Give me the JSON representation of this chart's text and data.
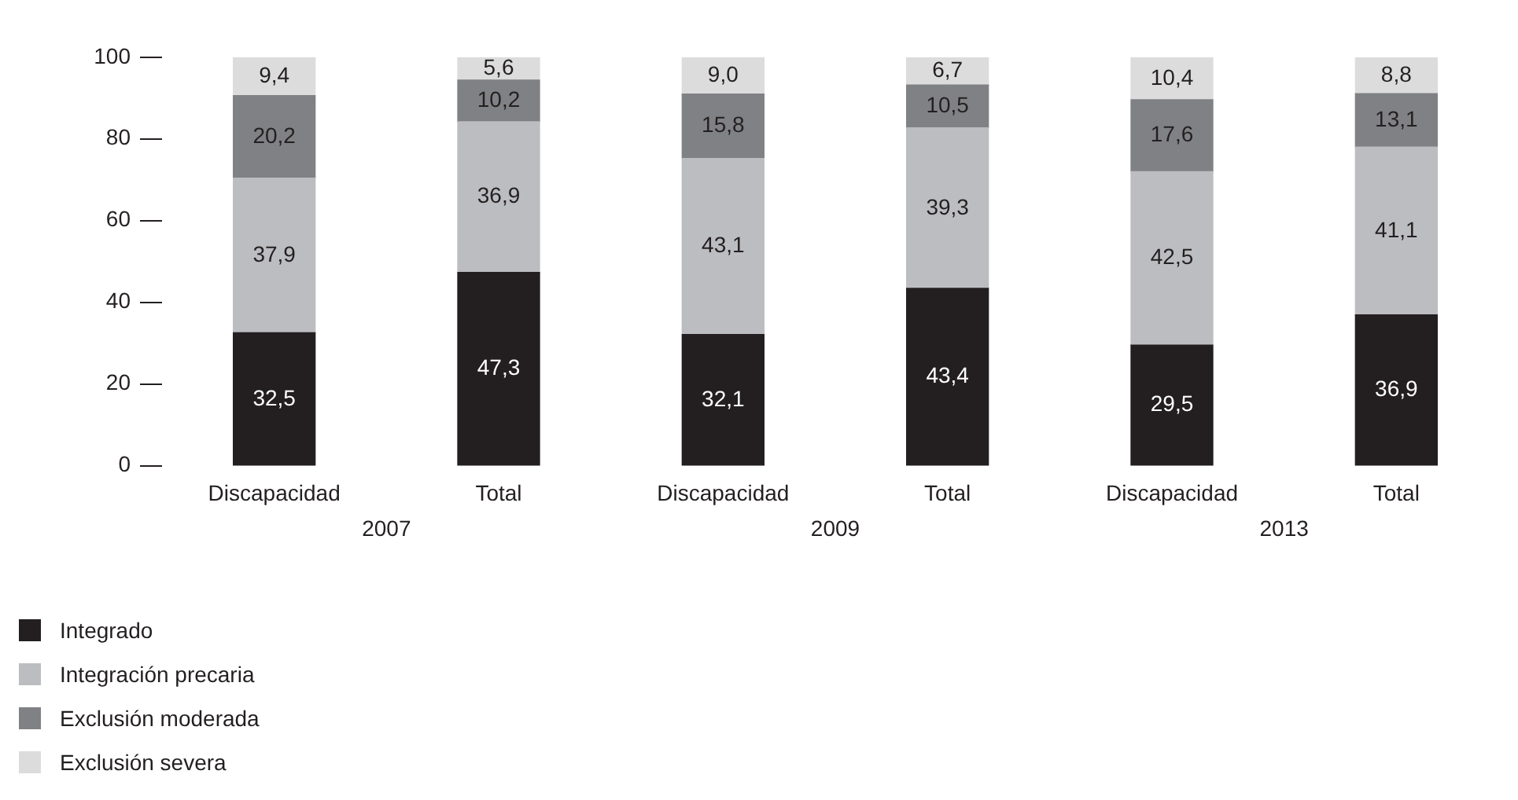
{
  "chart_data": {
    "type": "bar",
    "stacked": true,
    "categories": [
      "Discapacidad",
      "Total",
      "Discapacidad",
      "Total",
      "Discapacidad",
      "Total"
    ],
    "annotations": [
      "2007",
      "2009",
      "2013"
    ],
    "series": [
      {
        "name": "Integrado",
        "color": "#231f20",
        "values": [
          32.5,
          47.3,
          32.1,
          43.4,
          29.5,
          36.9
        ],
        "value_labels": [
          "32,5",
          "47,3",
          "32,1",
          "43,4",
          "29,5",
          "36,9"
        ]
      },
      {
        "name": "Integración precaria",
        "color": "#bcbdc0",
        "values": [
          37.9,
          36.9,
          43.1,
          39.3,
          42.5,
          41.1
        ],
        "value_labels": [
          "37,9",
          "36,9",
          "43,1",
          "39,3",
          "42,5",
          "41,1"
        ]
      },
      {
        "name": "Exclusión moderada",
        "color": "#808184",
        "values": [
          20.2,
          10.2,
          15.8,
          10.5,
          17.6,
          13.1
        ],
        "value_labels": [
          "20,2",
          "10,2",
          "15,8",
          "10,5",
          "17,6",
          "13,1"
        ]
      },
      {
        "name": "Exclusión severa",
        "color": "#dcdcdd",
        "values": [
          9.4,
          5.6,
          9.0,
          6.7,
          10.4,
          8.8
        ],
        "value_labels": [
          "9,4",
          "5,6",
          "9,0",
          "6,7",
          "10,4",
          "8,8"
        ]
      }
    ],
    "ylim": [
      0,
      100
    ],
    "yticks": [
      0,
      20,
      40,
      60,
      80,
      100
    ],
    "legend": "bottom left"
  }
}
